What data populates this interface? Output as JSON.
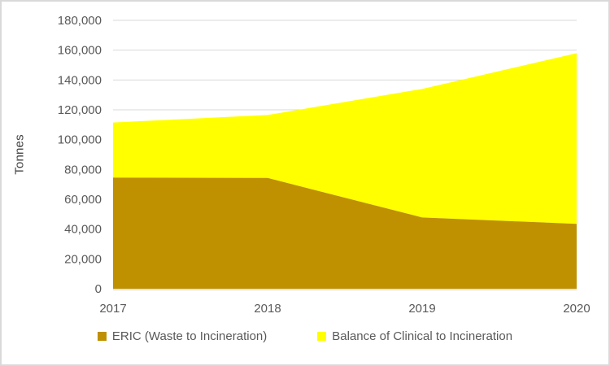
{
  "chart_data": {
    "type": "area",
    "stacked": true,
    "x": [
      "2017",
      "2018",
      "2019",
      "2020"
    ],
    "series": [
      {
        "name": "ERIC (Waste to Incineration)",
        "color": "#BF9000",
        "values": [
          74500,
          74300,
          47800,
          43500
        ]
      },
      {
        "name": "Balance of Clinical to Incineration",
        "color": "#FFFF00",
        "values": [
          37000,
          42200,
          86200,
          114500
        ]
      }
    ],
    "stacked_totals": [
      111500,
      116500,
      134000,
      158000
    ],
    "title": "",
    "xlabel": "",
    "ylabel": "Tonnes",
    "ylim": [
      0,
      180000
    ],
    "y_ticks": [
      {
        "value": 0,
        "label": "0"
      },
      {
        "value": 20000,
        "label": "20,000"
      },
      {
        "value": 40000,
        "label": "40,000"
      },
      {
        "value": 60000,
        "label": "60,000"
      },
      {
        "value": 80000,
        "label": "80,000"
      },
      {
        "value": 100000,
        "label": "100,000"
      },
      {
        "value": 120000,
        "label": "120,000"
      },
      {
        "value": 140000,
        "label": "140,000"
      },
      {
        "value": 160000,
        "label": "160,000"
      },
      {
        "value": 180000,
        "label": "180,000"
      }
    ],
    "grid": true,
    "legend_position": "bottom"
  },
  "colors": {
    "gridline": "#d9d9d9",
    "axis_line": "#d9d9d9",
    "tick_text": "#595959",
    "axis_title_text": "#404040",
    "frame_border": "#d9d9d9",
    "background": "#ffffff"
  }
}
